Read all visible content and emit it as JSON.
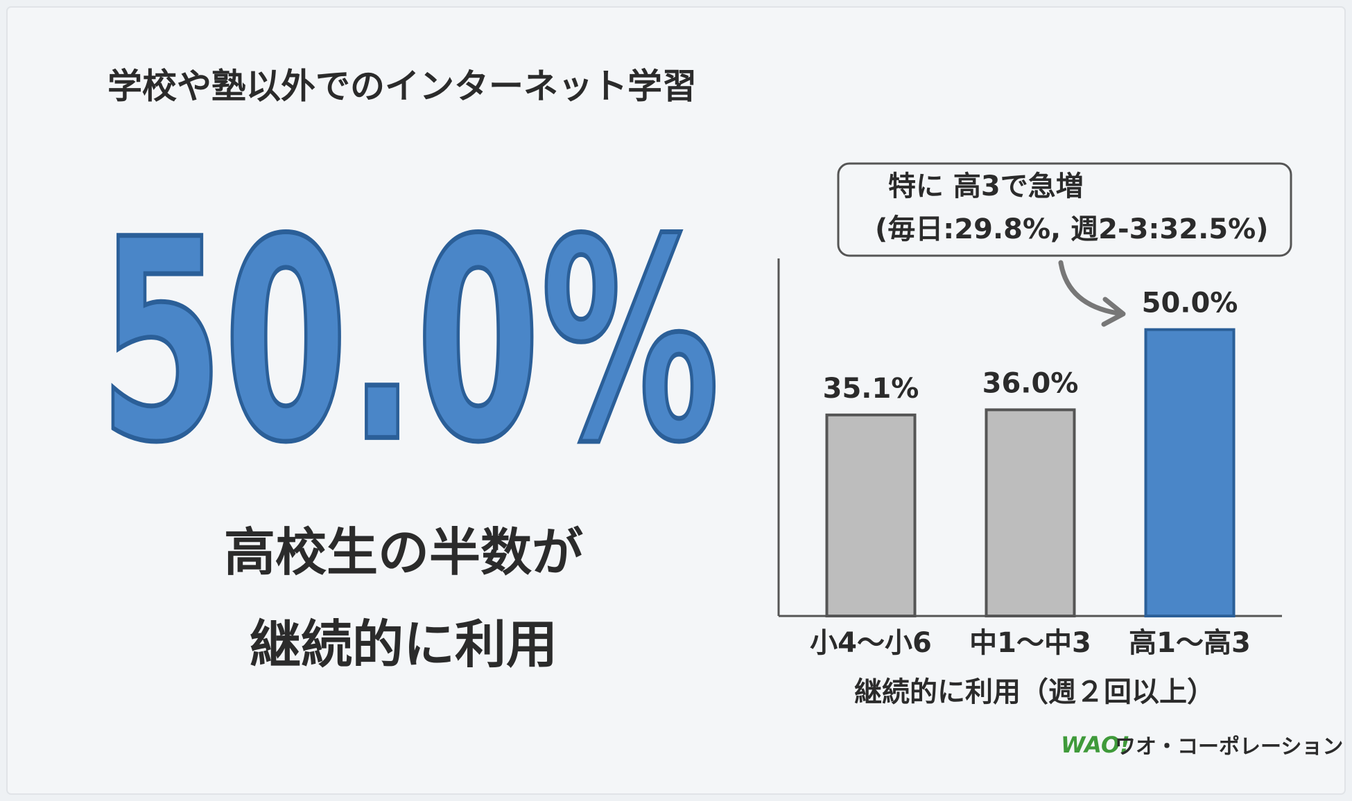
{
  "title": "学校や塾以外でのインターネット学習",
  "headline": "50.0%",
  "subtitle": [
    "高校生の半数が",
    "継続的に利用"
  ],
  "logo": {
    "mark": "WAO!",
    "name": "ワオ・コーポレーション"
  },
  "chart_data": {
    "type": "bar",
    "categories": [
      "小4〜小6",
      "中1〜中3",
      "高1〜高3"
    ],
    "values": [
      35.1,
      36.0,
      50.0
    ],
    "value_labels": [
      "35.1%",
      "36.0%",
      "50.0%"
    ],
    "colors": [
      "#bdbdbd",
      "#bdbdbd",
      "#4a86c8"
    ],
    "xlabel": "継続的に利用（週２回以上）",
    "annotation": [
      "特に 高3で急増",
      "(毎日:29.8%, 週2-3:32.5%)"
    ],
    "ylim": [
      0,
      60
    ]
  }
}
